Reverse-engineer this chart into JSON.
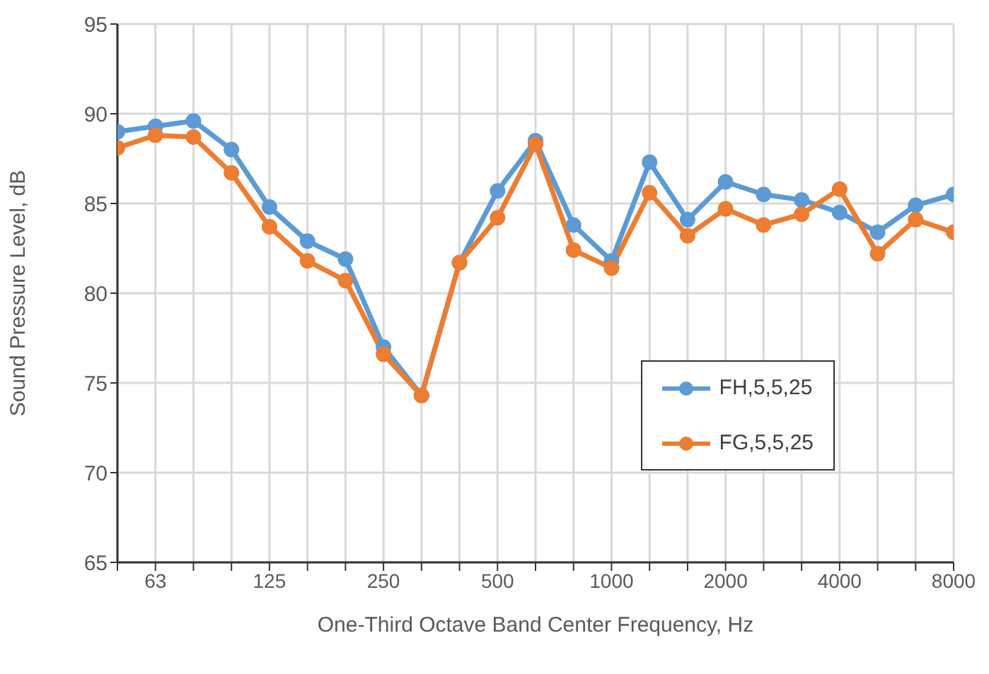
{
  "chart_data": {
    "type": "line",
    "xlabel": "One-Third Octave Band Center  Frequency, Hz",
    "ylabel": "Sound Pressure Level, dB",
    "categories": [
      null,
      "63",
      null,
      null,
      "125",
      null,
      null,
      "250",
      null,
      null,
      "500",
      null,
      null,
      "1000",
      null,
      null,
      "2000",
      null,
      null,
      "4000",
      null,
      null,
      "8000"
    ],
    "series": [
      {
        "name": "FH,5,5,25",
        "color": "#5b9bd5",
        "values": [
          89.0,
          89.3,
          89.6,
          88.0,
          84.8,
          82.9,
          81.9,
          77.0,
          74.3,
          81.7,
          85.7,
          88.5,
          83.8,
          81.8,
          87.3,
          84.1,
          86.2,
          85.5,
          85.2,
          84.5,
          83.4,
          84.9,
          85.5
        ]
      },
      {
        "name": "FG,5,5,25",
        "color": "#ed7d31",
        "values": [
          88.1,
          88.8,
          88.7,
          86.7,
          83.7,
          81.8,
          80.7,
          76.6,
          74.3,
          81.7,
          84.2,
          88.3,
          82.4,
          81.4,
          85.6,
          83.2,
          84.7,
          83.8,
          84.4,
          85.8,
          82.2,
          84.1,
          83.4
        ]
      }
    ],
    "ylim": [
      65,
      95
    ],
    "yticks": [
      65,
      70,
      75,
      80,
      85,
      90,
      95
    ],
    "grid": true,
    "legend": "bottom right",
    "marker": "circle",
    "line_style": "solid"
  }
}
